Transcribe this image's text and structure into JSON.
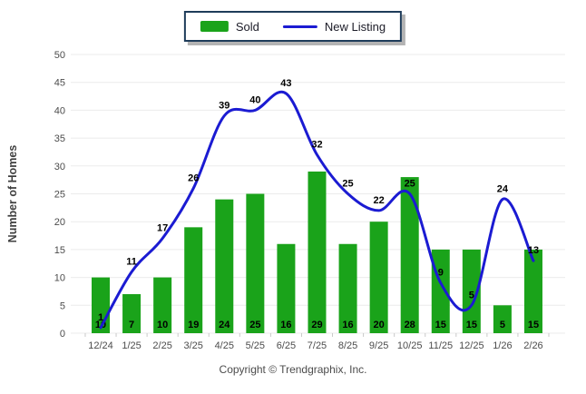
{
  "legend": {
    "items": [
      {
        "label": "Sold",
        "type": "swatch",
        "color": "#1AA31A"
      },
      {
        "label": "New Listing",
        "type": "line",
        "color": "#1B1BD2"
      }
    ]
  },
  "chart_data": {
    "type": "bar",
    "categories": [
      "12/24",
      "1/25",
      "2/25",
      "3/25",
      "4/25",
      "5/25",
      "6/25",
      "7/25",
      "8/25",
      "9/25",
      "10/25",
      "11/25",
      "12/25",
      "1/26",
      "2/26"
    ],
    "series": [
      {
        "name": "Sold",
        "type": "bar",
        "color": "#1AA31A",
        "values": [
          10,
          7,
          10,
          19,
          24,
          25,
          16,
          29,
          16,
          20,
          28,
          15,
          15,
          5,
          15
        ]
      },
      {
        "name": "New Listing",
        "type": "line",
        "color": "#1B1BD2",
        "values": [
          1,
          11,
          17,
          26,
          39,
          40,
          43,
          32,
          25,
          22,
          25,
          9,
          5,
          24,
          13
        ]
      }
    ],
    "title": "",
    "xlabel": "",
    "ylabel": "Number of Homes",
    "ylim": [
      0,
      50
    ],
    "ytick_step": 5,
    "grid": true,
    "legend_position": "top-center",
    "value_labels": true
  },
  "style": {
    "grid_color": "#ebebeb",
    "tick_color": "#c9c9c9",
    "axis_text_color": "#4c4c4c",
    "ylabel_color": "#3f3f3f",
    "data_label_color": "#000000"
  },
  "footer": {
    "copyright": "Copyright © Trendgraphix, Inc."
  }
}
